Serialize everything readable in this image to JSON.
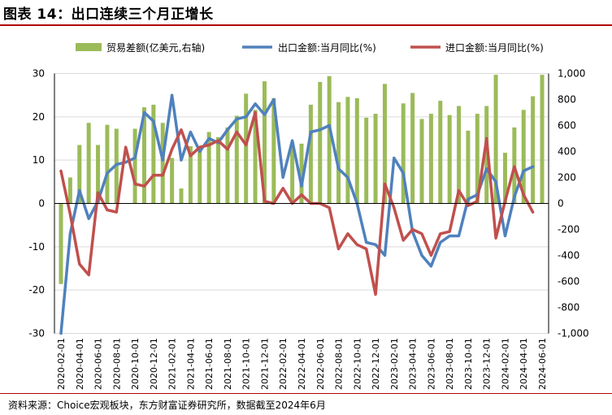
{
  "header": {
    "title": "图表 14：出口连续三个月正增长"
  },
  "footer": {
    "source": "资料来源：Choice宏观板块，东方财富证券研究所，数据截至2024年6月"
  },
  "colors": {
    "bar": "#9bbb59",
    "export": "#4f81bd",
    "import": "#c0504d",
    "axis": "#000000"
  },
  "chart_data": {
    "type": "bar+line",
    "x_tick_labels": [
      "2020-02-01",
      "2020-04-01",
      "2020-06-01",
      "2020-08-01",
      "2020-10-01",
      "2020-12-01",
      "2021-02-01",
      "2021-04-01",
      "2021-06-01",
      "2021-08-01",
      "2021-10-01",
      "2021-12-01",
      "2022-02-01",
      "2022-04-01",
      "2022-06-01",
      "2022-08-01",
      "2022-10-01",
      "2022-12-01",
      "2023-02-01",
      "2023-04-01",
      "2023-06-01",
      "2023-08-01",
      "2023-10-01",
      "2023-12-01",
      "2024-02-01",
      "2024-04-01",
      "2024-06-01"
    ],
    "categories": [
      "2020-02",
      "2020-03",
      "2020-04",
      "2020-05",
      "2020-06",
      "2020-07",
      "2020-08",
      "2020-09",
      "2020-10",
      "2020-11",
      "2020-12",
      "2021-01",
      "2021-02",
      "2021-03",
      "2021-04",
      "2021-05",
      "2021-06",
      "2021-07",
      "2021-08",
      "2021-09",
      "2021-10",
      "2021-11",
      "2021-12",
      "2022-01",
      "2022-02",
      "2022-03",
      "2022-04",
      "2022-05",
      "2022-06",
      "2022-07",
      "2022-08",
      "2022-09",
      "2022-10",
      "2022-11",
      "2022-12",
      "2023-01",
      "2023-02",
      "2023-03",
      "2023-04",
      "2023-05",
      "2023-06",
      "2023-07",
      "2023-08",
      "2023-09",
      "2023-10",
      "2023-11",
      "2023-12",
      "2024-01",
      "2024-02",
      "2024-03",
      "2024-04",
      "2024-05",
      "2024-06"
    ],
    "y_left": {
      "min": -30,
      "max": 30,
      "ticks": [
        "30",
        "20",
        "10",
        "0",
        "-10",
        "-20",
        "-30"
      ],
      "tick_values": [
        30,
        20,
        10,
        0,
        -10,
        -20,
        -30
      ]
    },
    "y_right": {
      "min": -1000,
      "max": 1000,
      "ticks": [
        "1,000",
        "800",
        "600",
        "400",
        "200",
        "0",
        "-200",
        "-400",
        "-600",
        "-800",
        "-1,000"
      ],
      "tick_values": [
        1000,
        800,
        600,
        400,
        200,
        0,
        -200,
        -400,
        -600,
        -800,
        -1000
      ]
    },
    "legend_position": "top",
    "grid": "horizontal",
    "series": [
      {
        "name": "贸易差额(亿美元,右轴)",
        "type": "bar",
        "axis": "right",
        "values": [
          -620,
          200,
          450,
          620,
          450,
          605,
          575,
          null,
          575,
          740,
          760,
          620,
          350,
          115,
          440,
          430,
          550,
          510,
          585,
          675,
          845,
          720,
          940,
          810,
          null,
          470,
          460,
          760,
          935,
          980,
          780,
          820,
          810,
          660,
          690,
          920,
          null,
          770,
          850,
          650,
          690,
          790,
          680,
          750,
          560,
          690,
          750,
          990,
          390,
          585,
          720,
          825,
          990
        ]
      },
      {
        "name": "出口金额:当月同比(%)",
        "type": "line",
        "axis": "left",
        "values": [
          -30,
          -7,
          3,
          -3.5,
          0.5,
          7,
          9,
          9.5,
          10.5,
          21,
          19,
          10,
          25,
          10,
          16.5,
          12,
          15,
          14,
          17,
          19.5,
          20,
          23,
          20.5,
          24,
          6,
          14.5,
          4,
          16.5,
          17,
          18,
          8,
          6,
          0,
          -9,
          -9.5,
          -12,
          10.5,
          7,
          -6.5,
          -12,
          -14.5,
          -9,
          -7.5,
          -7.5,
          1,
          2,
          8,
          5,
          -7.5,
          1.5,
          7.5,
          8.5,
          null
        ]
      },
      {
        "name": "进口金额:当月同比(%)",
        "type": "line",
        "axis": "left",
        "values": [
          7.5,
          -2.5,
          -14,
          -16.5,
          2.5,
          -1.5,
          -2,
          13,
          4.5,
          4,
          6.5,
          6.5,
          12.5,
          17,
          11,
          13,
          13.5,
          14.5,
          12.5,
          16.5,
          13.5,
          21,
          0.5,
          0,
          3.5,
          0,
          2,
          0,
          0,
          -1,
          -10.5,
          -7,
          -9.5,
          -10.5,
          -21,
          4.5,
          -1,
          -8.5,
          -6,
          -7,
          -12,
          -7,
          -6.5,
          3,
          -0.5,
          0.5,
          15,
          -8,
          0.5,
          8.5,
          2,
          -2,
          null
        ]
      }
    ]
  }
}
